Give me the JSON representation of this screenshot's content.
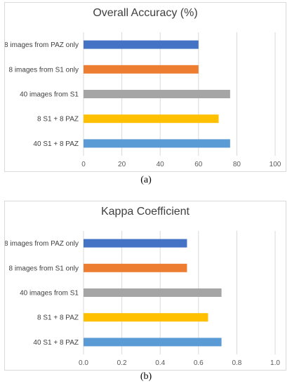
{
  "chart_data": [
    {
      "type": "bar",
      "orientation": "horizontal",
      "title": "Overall Accuracy (%)",
      "caption": "(a)",
      "categories": [
        "8 images from PAZ only",
        "8 images from S1 only",
        "40 images from S1",
        "8 S1 + 8 PAZ",
        "40 S1 + 8 PAZ"
      ],
      "values": [
        60,
        60,
        76.5,
        70.5,
        76.5
      ],
      "colors": [
        "#4472c4",
        "#ed7d31",
        "#a5a5a5",
        "#ffc000",
        "#5b9bd5"
      ],
      "xlim": [
        0,
        100
      ],
      "xticks": [
        "0",
        "20",
        "40",
        "60",
        "80",
        "100"
      ],
      "grid": true,
      "legend": "none"
    },
    {
      "type": "bar",
      "orientation": "horizontal",
      "title": "Kappa Coefficient",
      "caption": "(b)",
      "categories": [
        "8 images from PAZ only",
        "8 images from S1 only",
        "40 images from S1",
        "8 S1 + 8 PAZ",
        "40 S1 + 8 PAZ"
      ],
      "values": [
        0.54,
        0.54,
        0.72,
        0.65,
        0.72
      ],
      "colors": [
        "#4472c4",
        "#ed7d31",
        "#a5a5a5",
        "#ffc000",
        "#5b9bd5"
      ],
      "xlim": [
        0,
        1.0
      ],
      "xticks": [
        "0.0",
        "0.2",
        "0.4",
        "0.6",
        "0.8",
        "1.0"
      ],
      "grid": true,
      "legend": "none"
    }
  ]
}
